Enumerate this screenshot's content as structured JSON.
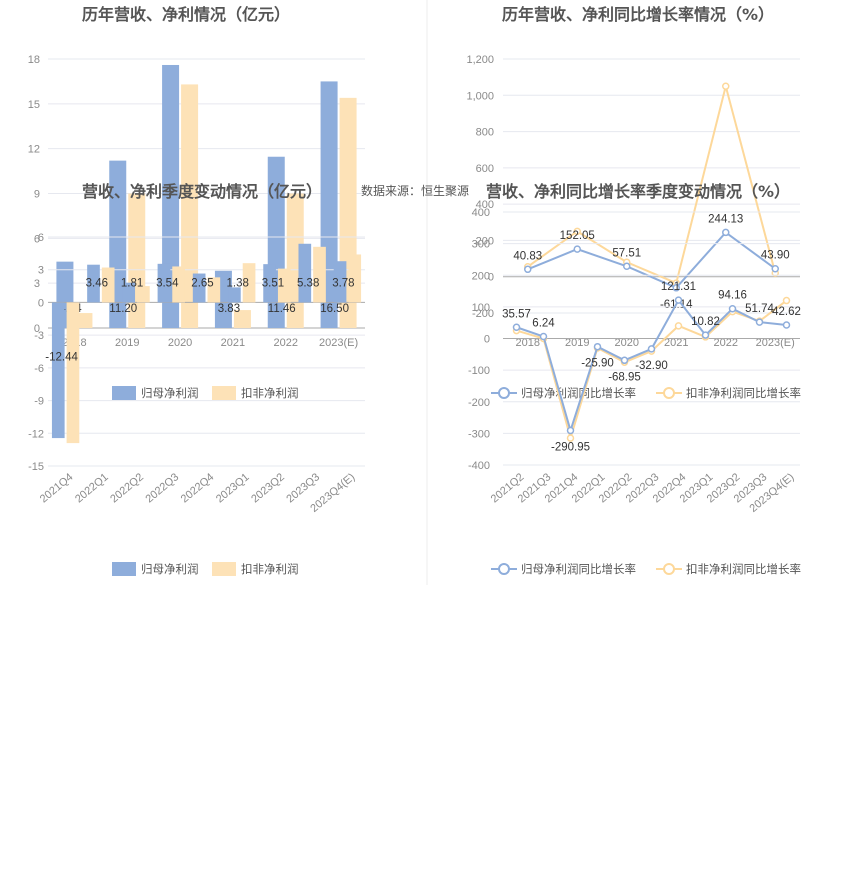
{
  "source_text": "数据来源：恒生聚源",
  "colors": {
    "blue": "#8eaddb",
    "orange": "#fde2b7",
    "orange_line": "#fdd89a",
    "grid": "#e6e8ef"
  },
  "chart_data": [
    {
      "id": "annual_bars",
      "type": "bar",
      "title": "历年营收、净利情况（亿元）",
      "categories": [
        "2018",
        "2019",
        "2020",
        "2021",
        "2022",
        "2023(E)"
      ],
      "series": [
        {
          "name": "归母净利润",
          "values": [
            4.44,
            11.2,
            17.6,
            3.83,
            11.46,
            16.5
          ],
          "labels": [
            "4.44",
            "11.20",
            "",
            "3.83",
            "11.46",
            "16.50"
          ]
        },
        {
          "name": "扣非净利润",
          "values": [
            1.0,
            9.0,
            16.3,
            1.2,
            9.0,
            15.4
          ],
          "labels": [
            "",
            "",
            "",
            "",
            "",
            ""
          ]
        }
      ],
      "yticks": [
        "0",
        "3",
        "6",
        "9",
        "12",
        "15",
        "18"
      ],
      "ylim": [
        0,
        18
      ]
    },
    {
      "id": "annual_growth",
      "type": "line",
      "title": "历年营收、净利同比增长率情况（%）",
      "categories": [
        "2018",
        "2019",
        "2020",
        "2021",
        "2022",
        "2023(E)"
      ],
      "series": [
        {
          "name": "归母净利润同比增长率",
          "values": [
            40.83,
            152.05,
            57.51,
            -61.14,
            244.13,
            43.9
          ],
          "labels": [
            "40.83",
            "152.05",
            "57.51",
            "-61.14",
            "244.13",
            "43.90"
          ]
        },
        {
          "name": "扣非净利润同比增长率",
          "values": [
            55,
            250,
            80,
            -35,
            1050,
            20
          ],
          "labels": [
            "",
            "",
            "",
            "",
            "",
            ""
          ]
        }
      ],
      "yticks": [
        "-200",
        "0",
        "200",
        "400",
        "600",
        "800",
        "1,000",
        "1,200"
      ],
      "ylim": [
        -200,
        1200
      ]
    },
    {
      "id": "quarterly_bars",
      "type": "bar",
      "title": "营收、净利季度变动情况（亿元）",
      "categories": [
        "2021Q4",
        "2022Q1",
        "2022Q2",
        "2022Q3",
        "2022Q4",
        "2023Q1",
        "2023Q2",
        "2023Q3",
        "2023Q4(E)"
      ],
      "series": [
        {
          "name": "归母净利润",
          "values": [
            -12.44,
            3.46,
            1.81,
            3.54,
            2.65,
            1.38,
            3.51,
            5.38,
            3.78
          ],
          "labels": [
            "-12.44",
            "3.46",
            "1.81",
            "3.54",
            "2.65",
            "1.38",
            "3.51",
            "5.38",
            "3.78"
          ]
        },
        {
          "name": "扣非净利润",
          "values": [
            -12.9,
            3.2,
            1.5,
            3.3,
            2.3,
            3.6,
            3.1,
            5.1,
            4.4
          ],
          "labels": [
            "",
            "",
            "",
            "",
            "",
            "",
            "",
            "",
            ""
          ]
        }
      ],
      "yticks": [
        "-15",
        "-12",
        "-9",
        "-6",
        "-3",
        "0",
        "3",
        "6"
      ],
      "ylim": [
        -15,
        6
      ]
    },
    {
      "id": "quarterly_growth",
      "type": "line",
      "title": "营收、净利同比增长率季度变动情况（%）",
      "categories": [
        "2021Q2",
        "2021Q3",
        "2021Q4",
        "2022Q1",
        "2022Q2",
        "2022Q3",
        "2022Q4",
        "2023Q1",
        "2023Q2",
        "2023Q3",
        "2023Q4(E)"
      ],
      "series": [
        {
          "name": "归母净利润同比增长率",
          "values": [
            35.57,
            6.24,
            -290.95,
            -25.9,
            -68.95,
            -32.9,
            121.31,
            10.82,
            94.16,
            51.74,
            42.62
          ],
          "labels": [
            "35.57",
            "6.24",
            "-290.95",
            "-25.90",
            "-68.95",
            "-32.90",
            "121.31",
            "10.82",
            "94.16",
            "51.74",
            "42.62"
          ]
        },
        {
          "name": "扣非净利润同比增长率",
          "values": [
            25,
            0,
            -315,
            -30,
            -75,
            -40,
            40,
            5,
            85,
            55,
            120
          ],
          "labels": [
            "",
            "",
            "",
            "",
            "",
            "",
            "",
            "",
            "",
            "",
            ""
          ]
        }
      ],
      "yticks": [
        "-400",
        "-300",
        "-200",
        "-100",
        "0",
        "100",
        "200",
        "300",
        "400"
      ],
      "ylim": [
        -400,
        400
      ]
    }
  ]
}
